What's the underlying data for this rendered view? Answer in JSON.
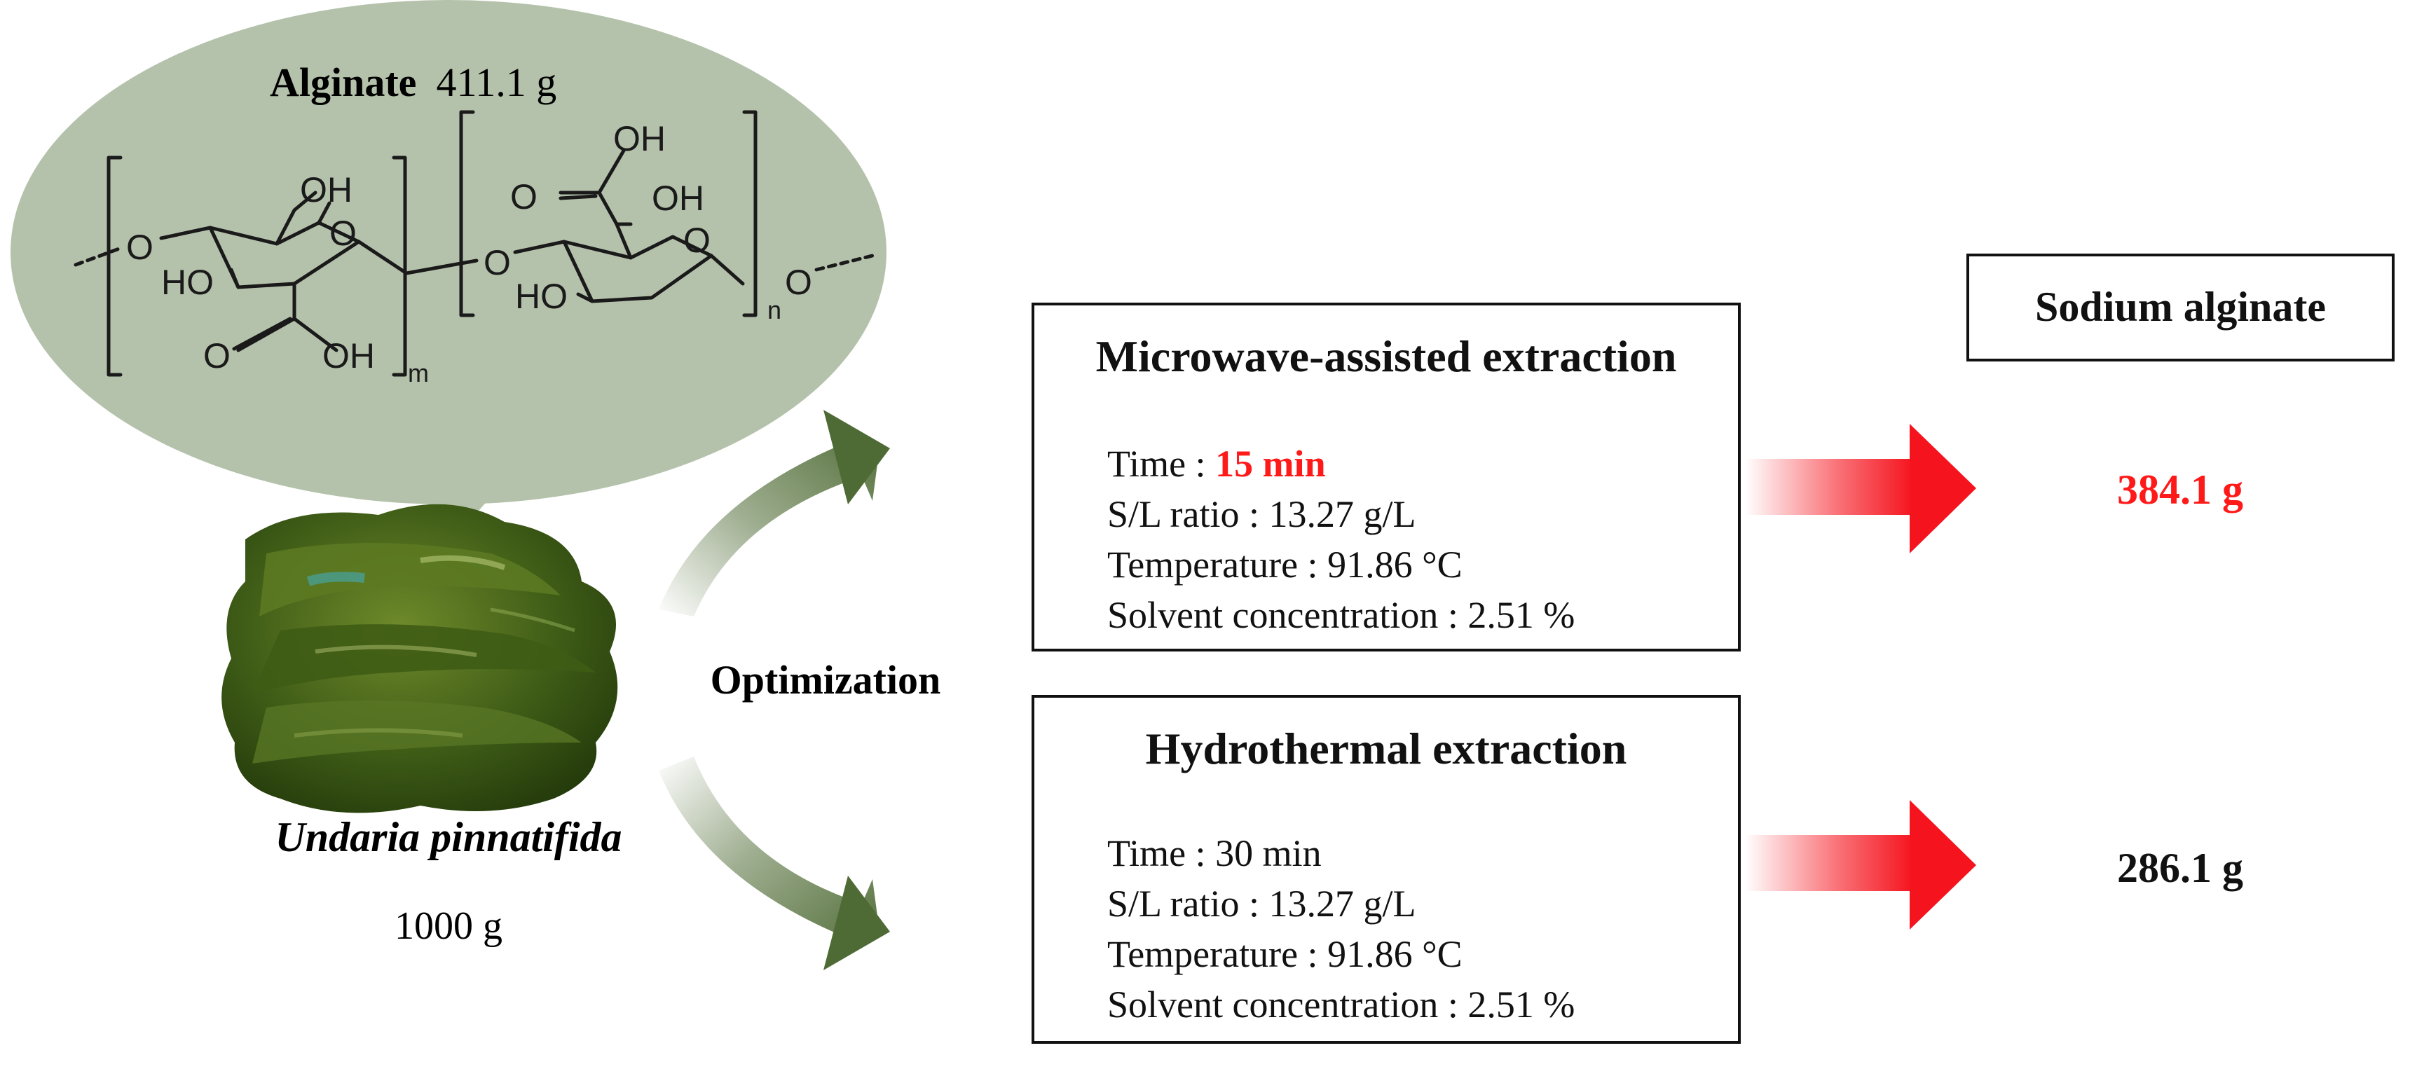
{
  "alginate": {
    "name": "Alginate",
    "amount": "411.1 g",
    "structure_labels": {
      "oh1": "OH",
      "o_ring1": "O",
      "o_link_left": "O",
      "ho1": "HO",
      "o_carbonyl1": "O",
      "oh_acid1": "OH",
      "sub_m": "m",
      "o_link_mid": "O",
      "oh_acid2_top": "OH",
      "o_carbonyl2": "O",
      "oh2": "OH",
      "o_ring2": "O",
      "ho2": "HO",
      "sub_n": "n",
      "o_link_right": "O"
    }
  },
  "seaweed": {
    "name": "Undaria pinnatifida",
    "amount": "1000 g"
  },
  "optimization_label": "Optimization",
  "microwave": {
    "title": "Microwave-assisted extraction",
    "params": [
      {
        "key": "Time : ",
        "value": "15 min",
        "highlight": true
      },
      {
        "key": "S/L ratio : ",
        "value": "13.27 g/L",
        "highlight": false
      },
      {
        "key": "Temperature : ",
        "value": "91.86 °C",
        "highlight": false
      },
      {
        "key": "Solvent concentration : ",
        "value": "2.51 %",
        "highlight": false
      }
    ],
    "result": "384.1 g"
  },
  "hydrothermal": {
    "title": "Hydrothermal extraction",
    "params": [
      {
        "key": "Time : ",
        "value": "30 min",
        "highlight": false
      },
      {
        "key": "S/L ratio : ",
        "value": "13.27 g/L",
        "highlight": false
      },
      {
        "key": "Temperature : ",
        "value": "91.86 °C",
        "highlight": false
      },
      {
        "key": "Solvent concentration : ",
        "value": "2.51 %",
        "highlight": false
      }
    ],
    "result": "286.1 g"
  },
  "product_label": "Sodium alginate",
  "colors": {
    "bubble": "#b5c2ab",
    "arrow_green": "#4f6b35",
    "arrow_red": "#f5141e",
    "highlight_red": "#ff1a1a",
    "seaweed_dark": "#2e4a12",
    "seaweed_mid": "#4c6b1c",
    "seaweed_light": "#6e8a2a"
  }
}
